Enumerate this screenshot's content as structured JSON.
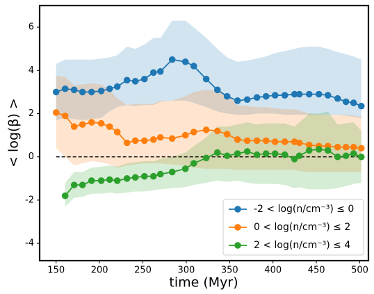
{
  "chart_data": {
    "type": "line",
    "xlabel": "time (Myr)",
    "ylabel": "< log(β) >",
    "x": [
      150,
      160.4,
      170.8,
      180.4,
      190.9,
      202,
      211.7,
      220.5,
      231.7,
      241.3,
      251.8,
      262.2,
      270.2,
      283.8,
      299,
      308.7,
      323,
      335.9,
      347.1,
      359.1,
      370.3,
      381.5,
      392,
      402.4,
      413.6,
      424.8,
      430.4,
      441.7,
      452.9,
      463.3,
      474.5,
      484.1,
      492.9,
      501.8
    ],
    "xlim": [
      131,
      510
    ],
    "xticks": [
      150,
      200,
      250,
      300,
      350,
      400,
      450,
      500
    ],
    "ylim": [
      -4.8,
      7
    ],
    "yticks": [
      -4,
      -2,
      0,
      2,
      4,
      6
    ],
    "hline": 0,
    "legend": "lower right",
    "series": [
      {
        "name": "-2 < log(n/cm⁻³) ≤  0",
        "color": "#1f77b4",
        "values": [
          3.0,
          3.15,
          3.1,
          3.0,
          3.0,
          3.05,
          3.15,
          3.25,
          3.55,
          3.5,
          3.6,
          3.9,
          3.95,
          4.5,
          4.4,
          4.2,
          3.6,
          3.1,
          2.8,
          2.6,
          2.65,
          2.75,
          2.8,
          2.85,
          2.85,
          2.9,
          2.9,
          2.9,
          2.9,
          2.85,
          2.7,
          2.55,
          2.5,
          2.35
        ],
        "upper": [
          4.3,
          4.5,
          4.5,
          4.5,
          4.5,
          4.55,
          4.6,
          4.7,
          5.1,
          5.0,
          5.2,
          5.5,
          5.5,
          6.3,
          6.3,
          6.0,
          5.5,
          5.0,
          4.6,
          4.4,
          4.45,
          4.55,
          4.65,
          4.8,
          4.9,
          5.0,
          5.05,
          5.1,
          5.1,
          5.0,
          4.85,
          4.75,
          4.65,
          4.5
        ],
        "lower": [
          1.7,
          1.8,
          1.75,
          1.7,
          1.75,
          1.8,
          2.1,
          2.3,
          2.4,
          2.35,
          2.4,
          2.4,
          2.55,
          2.6,
          2.6,
          2.5,
          2.3,
          2.1,
          2.0,
          1.95,
          1.95,
          2.0,
          2.0,
          2.0,
          1.95,
          1.95,
          1.95,
          1.95,
          1.95,
          1.95,
          1.95,
          1.9,
          1.85,
          1.8
        ]
      },
      {
        "name": "0 < log(n/cm⁻³) ≤  2",
        "color": "#ff7f0e",
        "values": [
          2.05,
          1.9,
          1.4,
          1.5,
          1.6,
          1.55,
          1.4,
          1.15,
          0.65,
          0.75,
          0.75,
          0.8,
          0.9,
          0.85,
          1.0,
          1.15,
          1.25,
          1.2,
          1.05,
          0.8,
          0.75,
          0.75,
          0.75,
          0.7,
          0.7,
          0.7,
          0.65,
          0.55,
          0.5,
          0.5,
          0.45,
          0.45,
          0.45,
          0.4
        ],
        "upper": [
          3.75,
          3.7,
          3.3,
          3.35,
          3.4,
          3.35,
          3.1,
          2.7,
          2.4,
          2.45,
          2.45,
          2.45,
          2.6,
          2.6,
          2.8,
          3.0,
          3.1,
          3.05,
          2.9,
          2.4,
          2.35,
          2.3,
          2.3,
          2.25,
          2.2,
          2.2,
          2.15,
          2.0,
          1.95,
          1.95,
          1.95,
          1.95,
          1.9,
          1.85
        ],
        "lower": [
          0.4,
          0.0,
          -0.4,
          -0.3,
          -0.2,
          -0.25,
          -0.35,
          -0.5,
          -0.4,
          -0.35,
          -0.3,
          -0.3,
          -0.3,
          -0.35,
          -0.4,
          -0.5,
          -0.55,
          -0.55,
          -0.55,
          -0.6,
          -0.6,
          -0.6,
          -0.6,
          -0.6,
          -0.6,
          -0.6,
          -0.65,
          -0.7,
          -0.7,
          -0.7,
          -0.7,
          -0.7,
          -0.7,
          -0.7
        ]
      },
      {
        "name": "2 < log(n/cm⁻³) ≤  4",
        "color": "#2ca02c",
        "values": [
          null,
          -1.8,
          -1.3,
          -1.3,
          -1.1,
          -1.1,
          -1.05,
          -1.1,
          -1.0,
          -0.95,
          -0.9,
          -0.9,
          -0.8,
          -0.7,
          -0.55,
          -0.3,
          -0.05,
          0.2,
          0.05,
          0.15,
          0.25,
          0.1,
          0.15,
          0.15,
          0.1,
          -0.1,
          0.05,
          0.3,
          0.35,
          0.3,
          0.0,
          0.05,
          0.15,
          0.0
        ],
        "upper": [
          null,
          -1.2,
          -0.7,
          -0.7,
          -0.5,
          -0.45,
          -0.4,
          -0.45,
          -0.3,
          -0.25,
          -0.2,
          -0.2,
          -0.1,
          0.0,
          0.2,
          0.5,
          0.9,
          1.4,
          1.4,
          1.5,
          1.6,
          1.5,
          1.55,
          1.55,
          1.55,
          1.4,
          1.6,
          2.0,
          2.0,
          2.1,
          1.5,
          1.55,
          1.6,
          1.2
        ],
        "lower": [
          null,
          -2.3,
          -1.9,
          -1.85,
          -1.7,
          -1.7,
          -1.65,
          -1.7,
          -1.65,
          -1.6,
          -1.6,
          -1.55,
          -1.5,
          -1.45,
          -1.4,
          -1.3,
          -1.2,
          -1.1,
          -1.15,
          -1.1,
          -1.2,
          -1.25,
          -1.25,
          -1.25,
          -1.3,
          -1.45,
          -1.4,
          -1.5,
          -1.5,
          -1.5,
          -1.45,
          -1.35,
          -1.25,
          -1.2
        ]
      }
    ]
  }
}
